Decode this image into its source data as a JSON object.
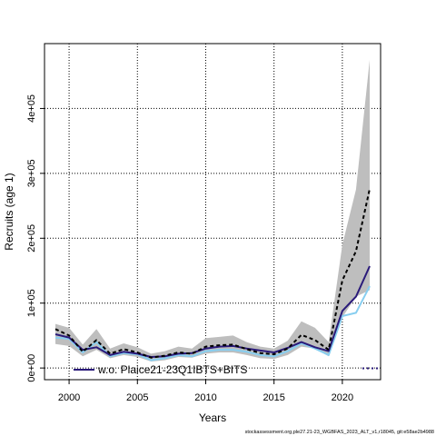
{
  "chart_data": {
    "type": "line",
    "title": "",
    "xlabel": "Years",
    "ylabel": "Recruits (age 1)",
    "xlim": [
      1998.2,
      2022.8
    ],
    "ylim": [
      -18000,
      500000
    ],
    "x_ticks": [
      2000,
      2005,
      2010,
      2015,
      2020
    ],
    "x_tick_labels": [
      "2000",
      "2005",
      "2010",
      "2015",
      "2020"
    ],
    "y_ticks": [
      0,
      100000,
      200000,
      300000,
      400000
    ],
    "y_tick_labels": [
      "0e+00",
      "1e+05",
      "2e+05",
      "3e+05",
      "4e+05"
    ],
    "grid": true,
    "legend_placement": "bottom-left",
    "x": [
      1999,
      2000,
      2001,
      2002,
      2003,
      2004,
      2005,
      2006,
      2007,
      2008,
      2009,
      2010,
      2011,
      2012,
      2013,
      2014,
      2015,
      2016,
      2017,
      2018,
      2019,
      2020,
      2021,
      2022
    ],
    "band": {
      "lower": [
        37000,
        34000,
        18000,
        28000,
        15000,
        20000,
        17000,
        10000,
        12000,
        17000,
        16000,
        22000,
        24000,
        24000,
        20000,
        15000,
        14000,
        20000,
        33000,
        30000,
        18000,
        78000,
        110000,
        120000
      ],
      "upper": [
        68000,
        62000,
        36000,
        60000,
        30000,
        38000,
        32000,
        22000,
        26000,
        33000,
        30000,
        46000,
        48000,
        50000,
        40000,
        33000,
        30000,
        42000,
        72000,
        62000,
        40000,
        190000,
        275000,
        475000
      ],
      "color": "#bebebe"
    },
    "series": [
      {
        "values": [
          60000,
          50000,
          25000,
          43000,
          22000,
          29000,
          24000,
          16000,
          19000,
          24000,
          22000,
          33000,
          35000,
          36000,
          29000,
          23000,
          21000,
          30000,
          51000,
          43000,
          28000,
          135000,
          180000,
          276000
        ],
        "color": "#000000",
        "dashed": true
      },
      {
        "values": [
          52000,
          47000,
          28000,
          32000,
          20000,
          25000,
          22000,
          17000,
          18000,
          22000,
          23000,
          30000,
          33000,
          34000,
          30000,
          27000,
          24000,
          31000,
          40000,
          32000,
          26000,
          88000,
          110000,
          157000
        ],
        "color": "#2a1a7a",
        "dashed": false
      },
      {
        "values": [
          47000,
          45000,
          24000,
          40000,
          18000,
          23000,
          21000,
          12000,
          15000,
          20000,
          18000,
          26000,
          28000,
          28000,
          25000,
          20000,
          18000,
          26000,
          38000,
          30000,
          20000,
          80000,
          85000,
          126000
        ],
        "color": "#87cef0",
        "dashed": false
      }
    ],
    "legend": [
      {
        "label": "w.o. Plaice21-23Q1IBTS+BITS",
        "color": "#2a1a7a"
      }
    ],
    "footer": "stockassessment.org,ple27.21-23_WGBFAS_2023_ALT_v1,r18045, git:e58ae2b4988"
  }
}
